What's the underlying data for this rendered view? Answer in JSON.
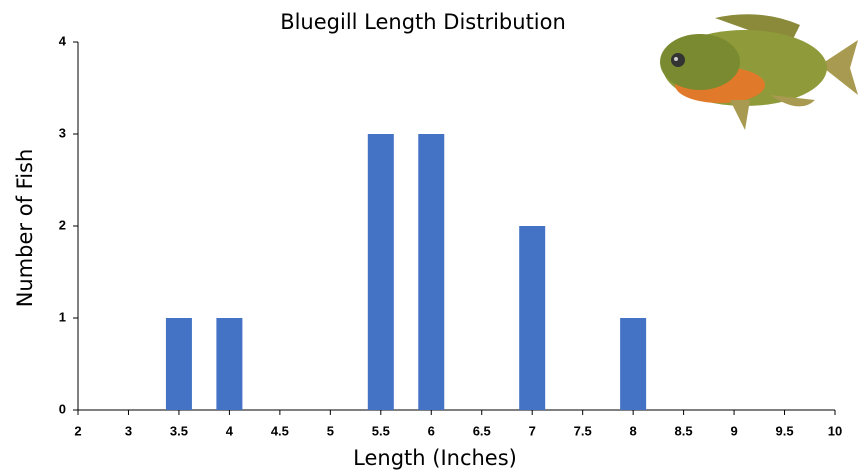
{
  "chart_data": {
    "type": "bar",
    "title": "Bluegill Length Distribution",
    "x_label": "Length (Inches)",
    "y_label": "Number of Fish",
    "categories": [
      "2",
      "3",
      "3.5",
      "4",
      "4.5",
      "5",
      "5.5",
      "6",
      "6.5",
      "7",
      "7.5",
      "8",
      "8.5",
      "9",
      "9.5",
      "10"
    ],
    "values": [
      0,
      0,
      1,
      1,
      0,
      0,
      3,
      3,
      0,
      2,
      0,
      1,
      0,
      0,
      0,
      0
    ],
    "color": "#4472c4",
    "ylim": [
      0,
      4
    ],
    "yticks": [
      0,
      1,
      2,
      3,
      4
    ],
    "grid": false
  }
}
